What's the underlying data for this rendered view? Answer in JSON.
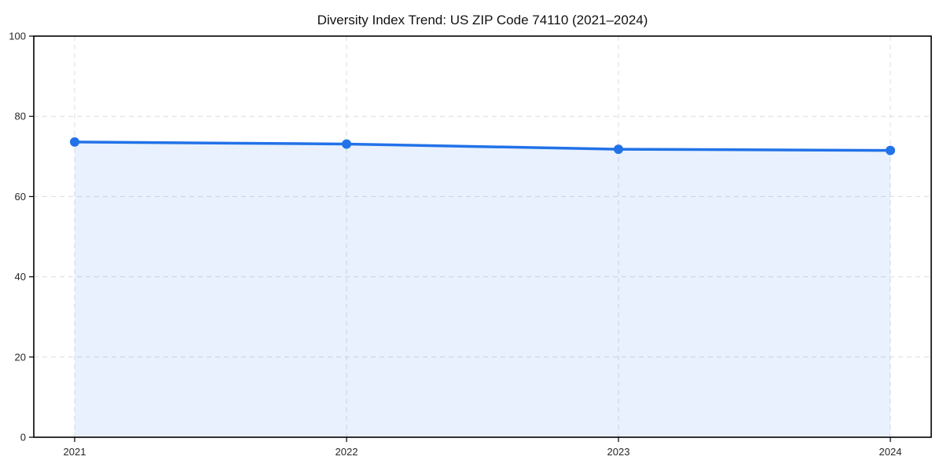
{
  "chart_data": {
    "type": "line",
    "title": "Diversity Index Trend: US ZIP Code 74110 (2021–2024)",
    "categories": [
      "2021",
      "2022",
      "2023",
      "2024"
    ],
    "values": [
      73.6,
      73.1,
      71.8,
      71.5
    ],
    "xlabel": "",
    "ylabel": "",
    "ylim": [
      0,
      100
    ],
    "yticks": [
      0,
      20,
      40,
      60,
      80,
      100
    ],
    "grid": "dashed-both-axes",
    "legend_position": "none",
    "markers": true,
    "area_fill": true,
    "colors": {
      "line": "#2272e8",
      "marker": "#2272e8",
      "area": "#2272e8",
      "area_opacity": "0.10",
      "grid": "#dcdcdc",
      "axis": "#000000",
      "title_text": "#111111",
      "tick_text": "#262626",
      "background": "#ffffff"
    }
  }
}
